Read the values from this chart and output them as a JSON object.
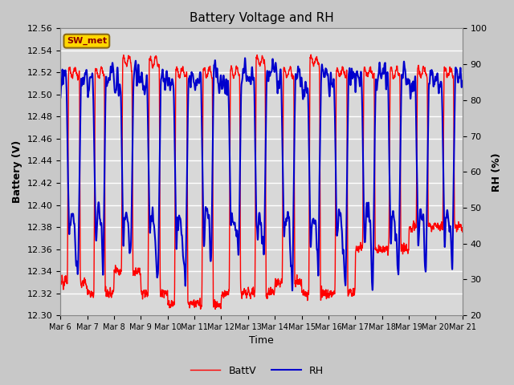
{
  "title": "Battery Voltage and RH",
  "xlabel": "Time",
  "ylabel_left": "Battery (V)",
  "ylabel_right": "RH (%)",
  "station_label": "SW_met",
  "ylim_left": [
    12.3,
    12.56
  ],
  "ylim_right": [
    20,
    100
  ],
  "yticks_left": [
    12.3,
    12.32,
    12.34,
    12.36,
    12.38,
    12.4,
    12.42,
    12.44,
    12.46,
    12.48,
    12.5,
    12.52,
    12.54,
    12.56
  ],
  "yticks_right": [
    20,
    30,
    40,
    50,
    60,
    70,
    80,
    90,
    100
  ],
  "color_battv": "#FF0000",
  "color_rh": "#0000CC",
  "background_color": "#C8C8C8",
  "plot_bg_color": "#D8D8D8",
  "legend_battv": "BattV",
  "legend_rh": "RH",
  "x_tick_labels": [
    "Mar 6",
    "Mar 7",
    "Mar 8",
    "Mar 9",
    "Mar 10",
    "Mar 11",
    "Mar 12",
    "Mar 13",
    "Mar 14",
    "Mar 15",
    "Mar 16",
    "Mar 17",
    "Mar 18",
    "Mar 19",
    "Mar 20",
    "Mar 21"
  ],
  "figsize": [
    6.4,
    4.8
  ],
  "dpi": 100
}
